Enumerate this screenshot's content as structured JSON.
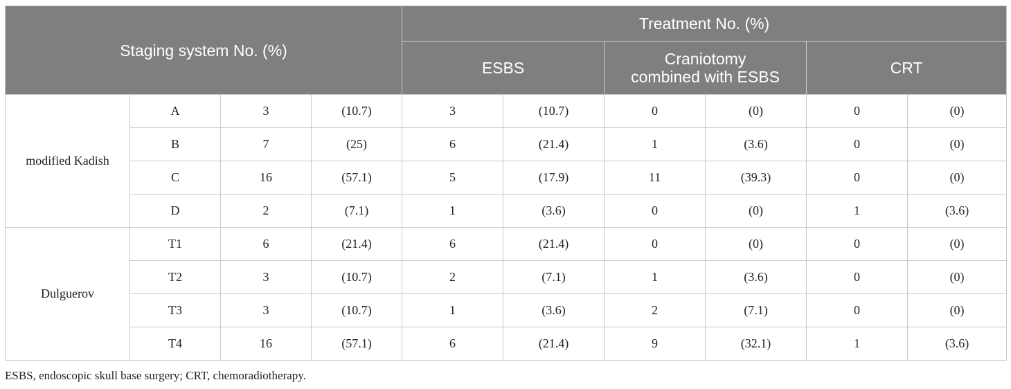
{
  "header": {
    "staging_label": "Staging system No. (%)",
    "treatment_label": "Treatment No. (%)",
    "col_esbs": "ESBS",
    "col_craniotomy_line1": "Craniotomy",
    "col_craniotomy_line2": "combined with ESBS",
    "col_crt": "CRT"
  },
  "groups": [
    {
      "name": "modified Kadish",
      "rows": [
        {
          "stage": "A",
          "n": "3",
          "pct": "(10.7)",
          "esbs_n": "3",
          "esbs_pct": "(10.7)",
          "cran_n": "0",
          "cran_pct": "(0)",
          "crt_n": "0",
          "crt_pct": "(0)"
        },
        {
          "stage": "B",
          "n": "7",
          "pct": "(25)",
          "esbs_n": "6",
          "esbs_pct": "(21.4)",
          "cran_n": "1",
          "cran_pct": "(3.6)",
          "crt_n": "0",
          "crt_pct": "(0)"
        },
        {
          "stage": "C",
          "n": "16",
          "pct": "(57.1)",
          "esbs_n": "5",
          "esbs_pct": "(17.9)",
          "cran_n": "11",
          "cran_pct": "(39.3)",
          "crt_n": "0",
          "crt_pct": "(0)"
        },
        {
          "stage": "D",
          "n": "2",
          "pct": "(7.1)",
          "esbs_n": "1",
          "esbs_pct": "(3.6)",
          "cran_n": "0",
          "cran_pct": "(0)",
          "crt_n": "1",
          "crt_pct": "(3.6)"
        }
      ]
    },
    {
      "name": "Dulguerov",
      "rows": [
        {
          "stage": "T1",
          "n": "6",
          "pct": "(21.4)",
          "esbs_n": "6",
          "esbs_pct": "(21.4)",
          "cran_n": "0",
          "cran_pct": "(0)",
          "crt_n": "0",
          "crt_pct": "(0)"
        },
        {
          "stage": "T2",
          "n": "3",
          "pct": "(10.7)",
          "esbs_n": "2",
          "esbs_pct": "(7.1)",
          "cran_n": "1",
          "cran_pct": "(3.6)",
          "crt_n": "0",
          "crt_pct": "(0)"
        },
        {
          "stage": "T3",
          "n": "3",
          "pct": "(10.7)",
          "esbs_n": "1",
          "esbs_pct": "(3.6)",
          "cran_n": "2",
          "cran_pct": "(7.1)",
          "crt_n": "0",
          "crt_pct": "(0)"
        },
        {
          "stage": "T4",
          "n": "16",
          "pct": "(57.1)",
          "esbs_n": "6",
          "esbs_pct": "(21.4)",
          "cran_n": "9",
          "cran_pct": "(32.1)",
          "crt_n": "1",
          "crt_pct": "(3.6)"
        }
      ]
    }
  ],
  "footnote": "ESBS, endoscopic skull base surgery; CRT, chemoradiotherapy.",
  "colors": {
    "header_bg": "#7f7f7f",
    "header_text": "#ffffff",
    "border": "#c9c9c9",
    "body_text": "#222222"
  }
}
